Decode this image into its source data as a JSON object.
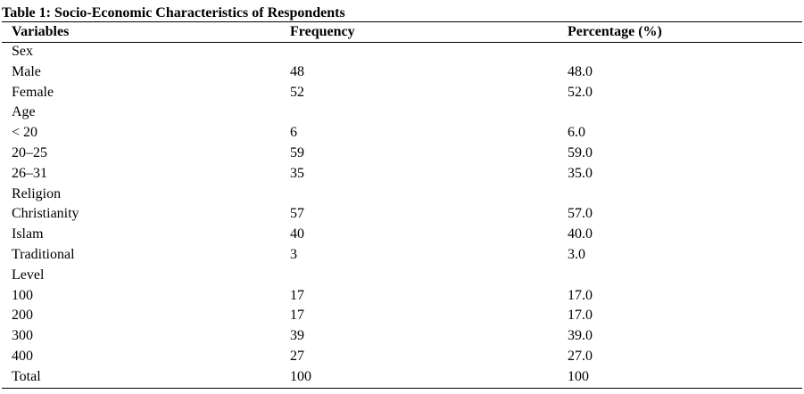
{
  "title": "Table 1: Socio-Economic Characteristics of Respondents",
  "headers": {
    "variables": "Variables",
    "frequency": "Frequency",
    "percentage": "Percentage (%)"
  },
  "rows": [
    {
      "variable": "Sex",
      "frequency": "",
      "percentage": ""
    },
    {
      "variable": "Male",
      "frequency": "48",
      "percentage": "48.0"
    },
    {
      "variable": "Female",
      "frequency": "52",
      "percentage": "52.0"
    },
    {
      "variable": "Age",
      "frequency": "",
      "percentage": ""
    },
    {
      "variable": "< 20",
      "frequency": "6",
      "percentage": "6.0"
    },
    {
      "variable": "20–25",
      "frequency": "59",
      "percentage": "59.0"
    },
    {
      "variable": "26–31",
      "frequency": "35",
      "percentage": "35.0"
    },
    {
      "variable": "Religion",
      "frequency": "",
      "percentage": ""
    },
    {
      "variable": "Christianity",
      "frequency": "57",
      "percentage": "57.0"
    },
    {
      "variable": "Islam",
      "frequency": "40",
      "percentage": "40.0"
    },
    {
      "variable": "Traditional",
      "frequency": "3",
      "percentage": "3.0"
    },
    {
      "variable": "Level",
      "frequency": "",
      "percentage": ""
    },
    {
      "variable": "100",
      "frequency": "17",
      "percentage": "17.0"
    },
    {
      "variable": "200",
      "frequency": "17",
      "percentage": "17.0"
    },
    {
      "variable": "300",
      "frequency": "39",
      "percentage": "39.0"
    },
    {
      "variable": "400",
      "frequency": "27",
      "percentage": "27.0"
    },
    {
      "variable": "Total",
      "frequency": "100",
      "percentage": "100"
    }
  ]
}
